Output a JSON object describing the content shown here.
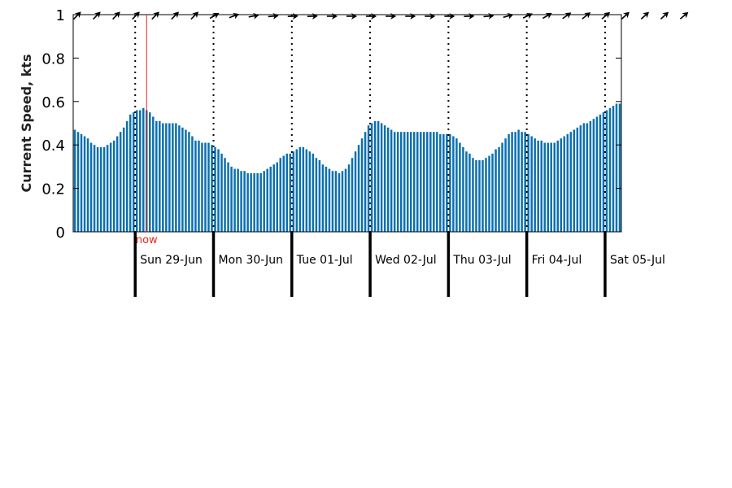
{
  "chart_data": {
    "type": "bar",
    "ylabel": "Current Speed, kts",
    "ylim": [
      0,
      1
    ],
    "yticks": [
      "0",
      "0.2",
      "0.4",
      "0.6",
      "0.8",
      "1"
    ],
    "grid": "off",
    "bar_color": "#0a6fb0",
    "now_color": "#e8261e",
    "now_label": "now",
    "days": [
      "Sun 29-Jun",
      "Mon 30-Jun",
      "Tue 01-Jul",
      "Wed 02-Jul",
      "Thu 03-Jul",
      "Fri 04-Jul",
      "Sat 05-Jul"
    ],
    "hours_before_first_day": 19,
    "now_hours_after_first_day": 3.5,
    "direction_arrow_spacing_hours": 6,
    "direction_deg": [
      225,
      225,
      225,
      225,
      225,
      225,
      225,
      240,
      250,
      260,
      265,
      268,
      268,
      270,
      270,
      270,
      270,
      270,
      270,
      270,
      268,
      265,
      255,
      245,
      240,
      235,
      232,
      230,
      228,
      228,
      228,
      230
    ],
    "values": [
      0.47,
      0.46,
      0.45,
      0.44,
      0.43,
      0.41,
      0.4,
      0.39,
      0.39,
      0.39,
      0.4,
      0.41,
      0.42,
      0.44,
      0.46,
      0.48,
      0.51,
      0.54,
      0.55,
      0.56,
      0.56,
      0.57,
      0.56,
      0.55,
      0.53,
      0.51,
      0.51,
      0.5,
      0.5,
      0.5,
      0.5,
      0.5,
      0.49,
      0.48,
      0.47,
      0.46,
      0.44,
      0.42,
      0.42,
      0.41,
      0.41,
      0.41,
      0.4,
      0.39,
      0.38,
      0.36,
      0.34,
      0.32,
      0.3,
      0.29,
      0.29,
      0.28,
      0.28,
      0.27,
      0.27,
      0.27,
      0.27,
      0.27,
      0.28,
      0.29,
      0.3,
      0.31,
      0.32,
      0.34,
      0.35,
      0.36,
      0.36,
      0.37,
      0.38,
      0.39,
      0.39,
      0.38,
      0.37,
      0.36,
      0.34,
      0.33,
      0.31,
      0.3,
      0.29,
      0.28,
      0.28,
      0.27,
      0.28,
      0.29,
      0.31,
      0.34,
      0.37,
      0.4,
      0.43,
      0.46,
      0.49,
      0.5,
      0.51,
      0.51,
      0.5,
      0.49,
      0.48,
      0.47,
      0.46,
      0.46,
      0.46,
      0.46,
      0.46,
      0.46,
      0.46,
      0.46,
      0.46,
      0.46,
      0.46,
      0.46,
      0.46,
      0.46,
      0.45,
      0.45,
      0.45,
      0.45,
      0.44,
      0.43,
      0.41,
      0.39,
      0.37,
      0.36,
      0.34,
      0.33,
      0.33,
      0.33,
      0.34,
      0.35,
      0.36,
      0.38,
      0.39,
      0.41,
      0.43,
      0.45,
      0.46,
      0.46,
      0.47,
      0.46,
      0.46,
      0.45,
      0.44,
      0.43,
      0.42,
      0.42,
      0.41,
      0.41,
      0.41,
      0.41,
      0.42,
      0.43,
      0.44,
      0.45,
      0.46,
      0.47,
      0.48,
      0.49,
      0.5,
      0.5,
      0.51,
      0.52,
      0.53,
      0.54,
      0.55,
      0.56,
      0.57,
      0.58,
      0.59,
      0.59
    ]
  }
}
